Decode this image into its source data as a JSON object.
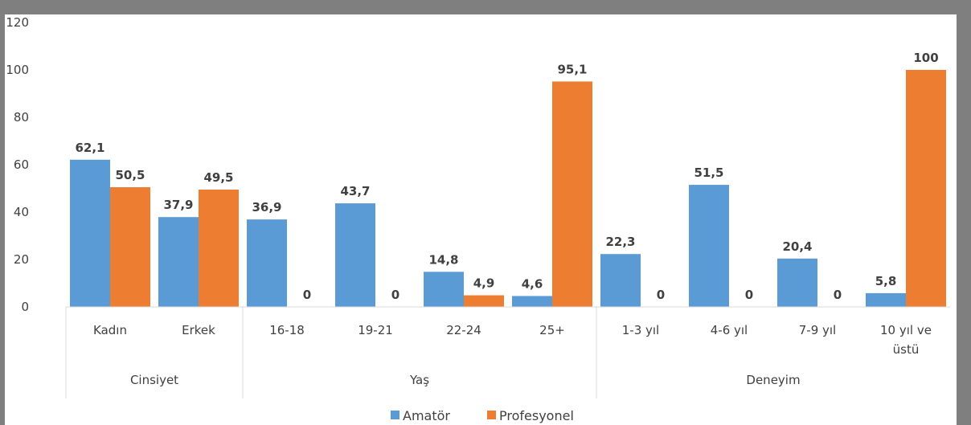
{
  "chart_data": {
    "type": "bar",
    "title": "",
    "xlabel": "",
    "ylabel": "",
    "ylim": [
      0,
      120
    ],
    "yticks": [
      "0",
      "20",
      "40",
      "60",
      "80",
      "100",
      "120"
    ],
    "categories": [
      [
        "Kadın"
      ],
      [
        "Erkek"
      ],
      [
        "16-18"
      ],
      [
        "19-21"
      ],
      [
        "22-24"
      ],
      [
        "25+"
      ],
      [
        "1-3 yıl"
      ],
      [
        "4-6 yıl"
      ],
      [
        "7-9 yıl"
      ],
      [
        "10 yıl ve",
        "üstü"
      ]
    ],
    "groups": [
      {
        "label": "Cinsiyet",
        "span": 2
      },
      {
        "label": "Yaş",
        "span": 4
      },
      {
        "label": "Deneyim",
        "span": 4
      }
    ],
    "series": [
      {
        "name": "Amatör",
        "color": "#5b9bd5",
        "values": [
          62.1,
          37.9,
          36.9,
          43.7,
          14.8,
          4.6,
          22.3,
          51.5,
          20.4,
          5.8
        ],
        "labels": [
          "62,1",
          "37,9",
          "36,9",
          "43,7",
          "14,8",
          "4,6",
          "22,3",
          "51,5",
          "20,4",
          "5,8"
        ]
      },
      {
        "name": "Profesyonel",
        "color": "#ed7d31",
        "values": [
          50.5,
          49.5,
          0,
          0,
          4.9,
          95.1,
          0,
          0,
          0,
          100
        ],
        "labels": [
          "50,5",
          "49,5",
          "0",
          "0",
          "4,9",
          "95,1",
          "0",
          "0",
          "0",
          "100"
        ]
      }
    ],
    "legend_position": "bottom",
    "grid": false
  }
}
